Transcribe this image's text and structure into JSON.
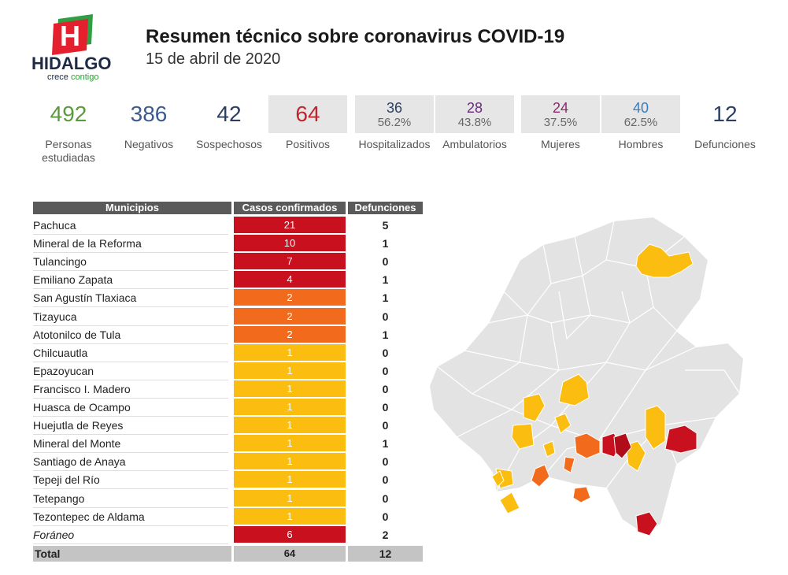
{
  "logo": {
    "letter": "H",
    "word": "HIDALGO",
    "tag_a": "crece",
    "tag_b": "contigo"
  },
  "header": {
    "title": "Resumen técnico sobre coronavirus COVID-19",
    "date": "15 de abril de 2020"
  },
  "stats": [
    {
      "value": "492",
      "label_1": "Personas",
      "label_2": "estudiadas",
      "color": "#5a9a3c"
    },
    {
      "value": "386",
      "label_1": "Negativos",
      "color": "#3b5b8f"
    },
    {
      "value": "42",
      "label_1": "Sospechosos",
      "color": "#2b3f60"
    },
    {
      "value": "64",
      "label_1": "Positivos",
      "color": "#c0262d"
    },
    {
      "value": "36",
      "pct": "56.2%",
      "label_1": "Hospitalizados",
      "color": "#2b3f60"
    },
    {
      "value": "28",
      "pct": "43.8%",
      "label_1": "Ambulatorios",
      "color": "#6a2a7a"
    },
    {
      "value": "24",
      "pct": "37.5%",
      "label_1": "Mujeres",
      "color": "#8a2a6a"
    },
    {
      "value": "40",
      "pct": "62.5%",
      "label_1": "Hombres",
      "color": "#3a7bc0"
    },
    {
      "value": "12",
      "label_1": "Defunciones",
      "color": "#2b3f60"
    }
  ],
  "table": {
    "headers": {
      "municipios": "Municipios",
      "casos": "Casos confirmados",
      "defunciones": "Defunciones"
    },
    "rows": [
      {
        "name": "Pachuca",
        "cases": "21",
        "deaths": "5",
        "color": "#c8101e"
      },
      {
        "name": "Mineral de la Reforma",
        "cases": "10",
        "deaths": "1",
        "color": "#c8101e"
      },
      {
        "name": "Tulancingo",
        "cases": "7",
        "deaths": "0",
        "color": "#c8101e"
      },
      {
        "name": "Emiliano Zapata",
        "cases": "4",
        "deaths": "1",
        "color": "#c8101e"
      },
      {
        "name": "San Agustín Tlaxiaca",
        "cases": "2",
        "deaths": "1",
        "color": "#f26b1d"
      },
      {
        "name": "Tizayuca",
        "cases": "2",
        "deaths": "0",
        "color": "#f26b1d"
      },
      {
        "name": "Atotonilco de Tula",
        "cases": "2",
        "deaths": "1",
        "color": "#f26b1d"
      },
      {
        "name": "Chilcuautla",
        "cases": "1",
        "deaths": "0",
        "color": "#fbbd0f"
      },
      {
        "name": "Epazoyucan",
        "cases": "1",
        "deaths": "0",
        "color": "#fbbd0f"
      },
      {
        "name": "Francisco I. Madero",
        "cases": "1",
        "deaths": "0",
        "color": "#fbbd0f"
      },
      {
        "name": "Huasca de Ocampo",
        "cases": "1",
        "deaths": "0",
        "color": "#fbbd0f"
      },
      {
        "name": "Huejutla de Reyes",
        "cases": "1",
        "deaths": "0",
        "color": "#fbbd0f"
      },
      {
        "name": "Mineral del Monte",
        "cases": "1",
        "deaths": "1",
        "color": "#fbbd0f"
      },
      {
        "name": "Santiago de Anaya",
        "cases": "1",
        "deaths": "0",
        "color": "#fbbd0f"
      },
      {
        "name": "Tepeji del Río",
        "cases": "1",
        "deaths": "0",
        "color": "#fbbd0f"
      },
      {
        "name": "Tetepango",
        "cases": "1",
        "deaths": "0",
        "color": "#fbbd0f"
      },
      {
        "name": "Tezontepec de Aldama",
        "cases": "1",
        "deaths": "0",
        "color": "#fbbd0f"
      },
      {
        "name": "Foráneo",
        "cases": "6",
        "deaths": "2",
        "color": "#c8101e",
        "italic": true
      }
    ],
    "total": {
      "label": "Total",
      "cases": "64",
      "deaths": "12"
    }
  },
  "map": {
    "base_color": "#e3e3e3",
    "border_color": "#ffffff"
  }
}
